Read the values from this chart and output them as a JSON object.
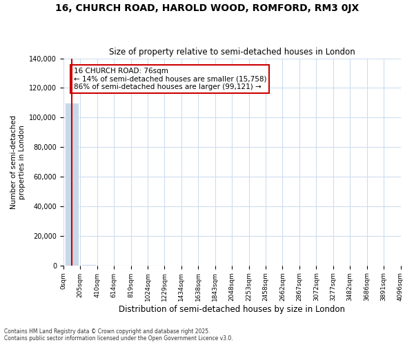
{
  "title": "16, CHURCH ROAD, HAROLD WOOD, ROMFORD, RM3 0JX",
  "subtitle": "Size of property relative to semi-detached houses in London",
  "xlabel": "Distribution of semi-detached houses by size in London",
  "ylabel": "Number of semi-detached\nproperties in London",
  "annotation_title": "16 CHURCH ROAD: 76sqm",
  "annotation_line1": "← 14% of semi-detached houses are smaller (15,758)",
  "annotation_line2": "86% of semi-detached houses are larger (99,121) →",
  "footer1": "Contains HM Land Registry data © Crown copyright and database right 2025.",
  "footer2": "Contains public sector information licensed under the Open Government Licence v3.0.",
  "bar_color": "#c8d8e8",
  "annotation_box_color": "#cc0000",
  "ylim": [
    0,
    140000
  ],
  "bin_labels": [
    "0sqm",
    "205sqm",
    "410sqm",
    "614sqm",
    "819sqm",
    "1024sqm",
    "1229sqm",
    "1434sqm",
    "1638sqm",
    "1843sqm",
    "2048sqm",
    "2253sqm",
    "2458sqm",
    "2662sqm",
    "2867sqm",
    "3072sqm",
    "3277sqm",
    "3482sqm",
    "3686sqm",
    "3891sqm",
    "4096sqm"
  ],
  "bar_heights": [
    110000,
    800,
    300,
    150,
    80,
    50,
    30,
    20,
    15,
    10,
    8,
    6,
    5,
    4,
    3,
    3,
    2,
    2,
    2,
    1
  ],
  "highlight_bar_index": 0,
  "vertical_line_x": 0,
  "grid_color": "#ccddee",
  "background_color": "#ffffff"
}
